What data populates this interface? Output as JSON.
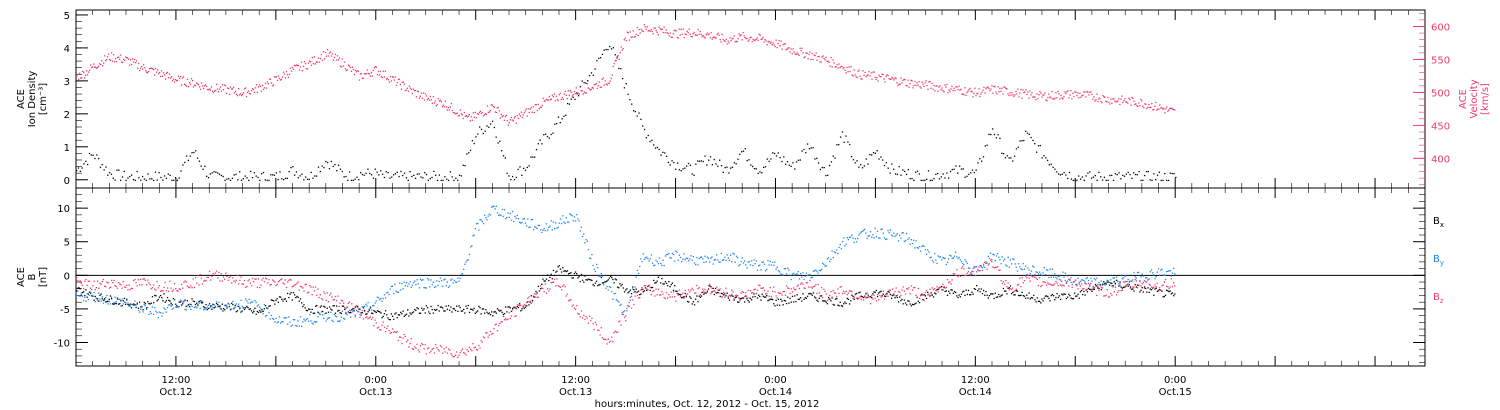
{
  "chart_data": [
    {
      "type": "scatter",
      "panel": "top",
      "ylabel_left": [
        "ACE",
        "Ion Density",
        "[cm⁻³]"
      ],
      "ylabel_right": [
        "ACE",
        "Velocity",
        "[km/s]"
      ],
      "ylim_left": [
        -0.25,
        5.15
      ],
      "ylim_right": [
        355,
        625
      ],
      "yticks_left": [
        "0",
        "1",
        "2",
        "3",
        "4",
        "5"
      ],
      "yticks_right": [
        "400",
        "450",
        "500",
        "550",
        "600"
      ],
      "series": [
        {
          "name": "",
          "axis": "left",
          "color": "#000000",
          "x_hours": [
            0,
            2,
            4,
            6,
            8,
            10,
            12,
            14,
            16,
            18,
            20,
            22,
            24,
            26,
            28,
            30,
            32,
            33,
            34,
            36,
            37,
            38,
            40,
            42,
            44,
            46,
            48,
            50,
            52,
            54,
            56,
            58,
            60,
            62,
            64,
            66,
            68,
            70,
            72,
            74,
            76,
            78,
            80,
            82,
            84,
            86,
            88,
            90,
            92,
            94,
            96,
            98,
            100,
            102,
            104,
            106,
            108,
            110,
            112,
            114,
            116,
            118,
            120,
            122,
            124,
            126,
            128,
            130,
            132
          ],
          "values": [
            0.3,
            0.8,
            0.2,
            0.1,
            0.1,
            0.1,
            0.1,
            0.9,
            0.1,
            0.1,
            0.1,
            0.1,
            0.1,
            0.3,
            0.1,
            0.6,
            0.2,
            0.1,
            0.2,
            0.2,
            0.1,
            0.1,
            0.1,
            0.1,
            0.1,
            0.1,
            1.4,
            1.8,
            0.1,
            0.4,
            1.2,
            1.8,
            2.6,
            3.3,
            4.2,
            2.8,
            1.6,
            0.9,
            0.5,
            0.3,
            0.7,
            0.3,
            0.9,
            0.3,
            0.8,
            0.4,
            1.1,
            0.2,
            1.4,
            0.3,
            0.9,
            0.3,
            0.2,
            0.1,
            0.2,
            0.3,
            0.2,
            1.6,
            0.5,
            1.4,
            0.8,
            0.3,
            0.1,
            0.1,
            0.1,
            0.1,
            0.1,
            0.1,
            0.1
          ]
        },
        {
          "name": "",
          "axis": "right",
          "color": "#f23a6a",
          "x_hours": [
            0,
            1,
            2,
            4,
            6,
            8,
            10,
            12,
            14,
            16,
            18,
            20,
            22,
            24,
            26,
            28,
            30,
            32,
            34,
            36,
            38,
            40,
            42,
            44,
            46,
            47,
            48,
            50,
            52,
            54,
            56,
            58,
            60,
            62,
            64,
            66,
            68,
            70,
            72,
            74,
            76,
            78,
            80,
            82,
            84,
            86,
            88,
            90,
            92,
            94,
            96,
            98,
            100,
            102,
            104,
            106,
            108,
            110,
            112,
            114,
            116,
            118,
            120,
            122,
            124,
            126,
            128,
            130,
            132
          ],
          "values": [
            525,
            530,
            540,
            555,
            550,
            538,
            530,
            520,
            515,
            508,
            505,
            500,
            508,
            520,
            535,
            545,
            560,
            545,
            525,
            535,
            520,
            505,
            492,
            485,
            470,
            460,
            465,
            480,
            455,
            470,
            485,
            495,
            502,
            510,
            520,
            585,
            598,
            595,
            590,
            592,
            588,
            580,
            585,
            582,
            575,
            565,
            558,
            550,
            540,
            528,
            525,
            520,
            515,
            512,
            508,
            505,
            500,
            505,
            502,
            498,
            495,
            497,
            498,
            495,
            490,
            488,
            485,
            478,
            470
          ]
        }
      ]
    },
    {
      "type": "scatter",
      "panel": "bottom",
      "ylabel_left": [
        "ACE",
        "B",
        "[nT]"
      ],
      "ylim": [
        -13.5,
        13
      ],
      "yticks": [
        "-10",
        "-5",
        "0",
        "5",
        "10"
      ],
      "zero_line": true,
      "series": [
        {
          "name": "Bx",
          "color": "#000000",
          "x_hours": [
            0,
            2,
            4,
            6,
            8,
            10,
            12,
            14,
            16,
            18,
            20,
            22,
            24,
            26,
            28,
            30,
            32,
            34,
            36,
            38,
            40,
            42,
            44,
            46,
            48,
            50,
            52,
            54,
            56,
            58,
            60,
            62,
            64,
            66,
            68,
            70,
            72,
            74,
            76,
            78,
            80,
            82,
            84,
            86,
            88,
            90,
            92,
            94,
            96,
            98,
            100,
            102,
            104,
            106,
            108,
            110,
            112,
            114,
            116,
            118,
            120,
            122,
            124,
            126,
            128,
            130,
            132
          ],
          "values": [
            -2,
            -3,
            -3.5,
            -4,
            -4.5,
            -3,
            -4,
            -4,
            -4.5,
            -4.5,
            -5,
            -5.5,
            -3.5,
            -3,
            -5,
            -5,
            -5,
            -5,
            -5.5,
            -6,
            -5.5,
            -5,
            -5,
            -5,
            -5,
            -5.5,
            -5,
            -4.5,
            -1,
            1,
            0,
            -1,
            -0.5,
            -2,
            -2.5,
            -0.5,
            -2,
            -4,
            -2,
            -3,
            -3.5,
            -3,
            -4,
            -3.5,
            -3,
            -3.5,
            -4,
            -3,
            -2.5,
            -3,
            -4,
            -3,
            -2,
            -3,
            -2,
            -3,
            -2,
            -3,
            -3.5,
            -3,
            -3,
            -2,
            -1,
            -1.5,
            -2,
            -2.5,
            -3
          ]
        },
        {
          "name": "By",
          "color": "#1e86e8",
          "x_hours": [
            0,
            2,
            4,
            6,
            8,
            10,
            12,
            14,
            16,
            18,
            20,
            22,
            24,
            26,
            28,
            30,
            32,
            34,
            36,
            38,
            40,
            42,
            44,
            46,
            48,
            50,
            52,
            54,
            56,
            58,
            60,
            62,
            64,
            66,
            68,
            70,
            72,
            74,
            76,
            78,
            80,
            82,
            84,
            86,
            88,
            90,
            92,
            94,
            96,
            98,
            100,
            102,
            104,
            106,
            108,
            110,
            112,
            114,
            116,
            118,
            120,
            122,
            124,
            126,
            128,
            130,
            132
          ],
          "values": [
            -3,
            -3,
            -3.5,
            -4,
            -5,
            -5.5,
            -4,
            -4.5,
            -4.5,
            -4.5,
            -4,
            -4.5,
            -6.5,
            -7,
            -6.5,
            -6,
            -6,
            -5.5,
            -4,
            -2,
            -1,
            -1,
            -1,
            -1,
            7,
            10,
            9,
            8,
            7,
            8,
            9,
            2,
            -2,
            -6,
            3,
            2,
            3,
            2.5,
            2,
            3,
            2,
            1.5,
            1.5,
            0,
            0,
            2,
            5,
            6,
            6.5,
            6,
            5.5,
            3.5,
            2,
            3,
            0.5,
            3,
            2,
            1,
            0.5,
            0,
            -1,
            -1,
            -1,
            -0.5,
            0,
            0.5,
            0.5
          ]
        },
        {
          "name": "Bz",
          "color": "#f23a6a",
          "x_hours": [
            0,
            2,
            4,
            6,
            8,
            10,
            12,
            14,
            16,
            18,
            20,
            22,
            24,
            26,
            28,
            30,
            32,
            34,
            36,
            38,
            40,
            42,
            44,
            46,
            48,
            50,
            52,
            54,
            56,
            58,
            60,
            62,
            64,
            66,
            68,
            70,
            72,
            74,
            76,
            78,
            80,
            82,
            84,
            86,
            88,
            90,
            92,
            94,
            96,
            98,
            100,
            102,
            104,
            106,
            108,
            110,
            112,
            114,
            116,
            118,
            120,
            122,
            124,
            126,
            128,
            130,
            132
          ],
          "values": [
            -1,
            -1.5,
            -1,
            -1.5,
            -1,
            -1.5,
            -1.5,
            -1,
            0,
            0,
            -1,
            -1,
            -1,
            -1,
            -2,
            -3,
            -4,
            -5.5,
            -7,
            -8.5,
            -10,
            -11,
            -11,
            -11.5,
            -10.5,
            -8,
            -6,
            -4,
            -2,
            -1,
            -5,
            -7,
            -10,
            -5,
            -2,
            -2.5,
            -3,
            -2,
            -2,
            -2.5,
            -3,
            -2,
            -2.5,
            -2,
            -1,
            -3,
            -2,
            -3,
            -3.5,
            -2.5,
            -2,
            -3,
            -1.5,
            0.5,
            1,
            2,
            -2,
            -0.5,
            -1,
            -1,
            -1,
            -2,
            -2.5,
            -1.5,
            -1,
            -1.5,
            -1
          ]
        }
      ]
    }
  ],
  "x_axis": {
    "label": "hours:minutes, Oct. 12, 2012 - Oct. 15, 2012",
    "range_hours": [
      0,
      162
    ],
    "major_ticks": [
      {
        "hour": 12,
        "time": "12:00",
        "date": "Oct.12"
      },
      {
        "hour": 36,
        "time": "0:00",
        "date": "Oct.13"
      },
      {
        "hour": 60,
        "time": "12:00",
        "date": "Oct.13"
      },
      {
        "hour": 84,
        "time": "0:00",
        "date": "Oct.14"
      },
      {
        "hour": 108,
        "time": "12:00",
        "date": "Oct.14"
      },
      {
        "hour": 132,
        "time": "0:00",
        "date": "Oct.15"
      }
    ]
  },
  "legend": {
    "items": [
      {
        "main": "B",
        "sub": "x",
        "color": "#000000"
      },
      {
        "main": "B",
        "sub": "y",
        "color": "#1e86e8"
      },
      {
        "main": "B",
        "sub": "z",
        "color": "#f23a6a"
      }
    ],
    "placement": "right"
  }
}
